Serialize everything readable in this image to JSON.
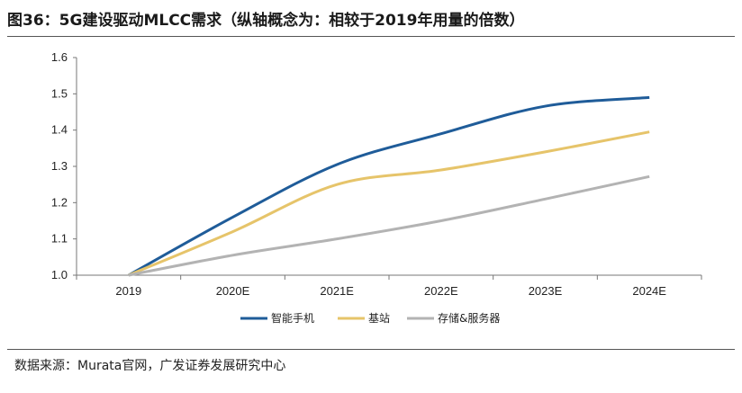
{
  "title": "图36：5G建设驱动MLCC需求（纵轴概念为：相较于2019年用量的倍数）",
  "source": "数据来源：Murata官网，广发证券发展研究中心",
  "chart_data": {
    "type": "line",
    "categories": [
      "2019",
      "2020E",
      "2021E",
      "2022E",
      "2023E",
      "2024E"
    ],
    "ylim": [
      1.0,
      1.6
    ],
    "yticks": [
      "1.0",
      "1.1",
      "1.2",
      "1.3",
      "1.4",
      "1.5",
      "1.6"
    ],
    "grid": false,
    "legend_position": "bottom",
    "series": [
      {
        "name": "智能手机",
        "color": "#1f5c99",
        "values": [
          1.0,
          1.16,
          1.305,
          1.39,
          1.466,
          1.49
        ]
      },
      {
        "name": "基站",
        "color": "#e6c46a",
        "values": [
          1.0,
          1.12,
          1.25,
          1.29,
          1.34,
          1.395
        ]
      },
      {
        "name": "存储&服务器",
        "color": "#b3b3b3",
        "values": [
          1.0,
          1.055,
          1.1,
          1.15,
          1.21,
          1.272
        ]
      }
    ]
  }
}
